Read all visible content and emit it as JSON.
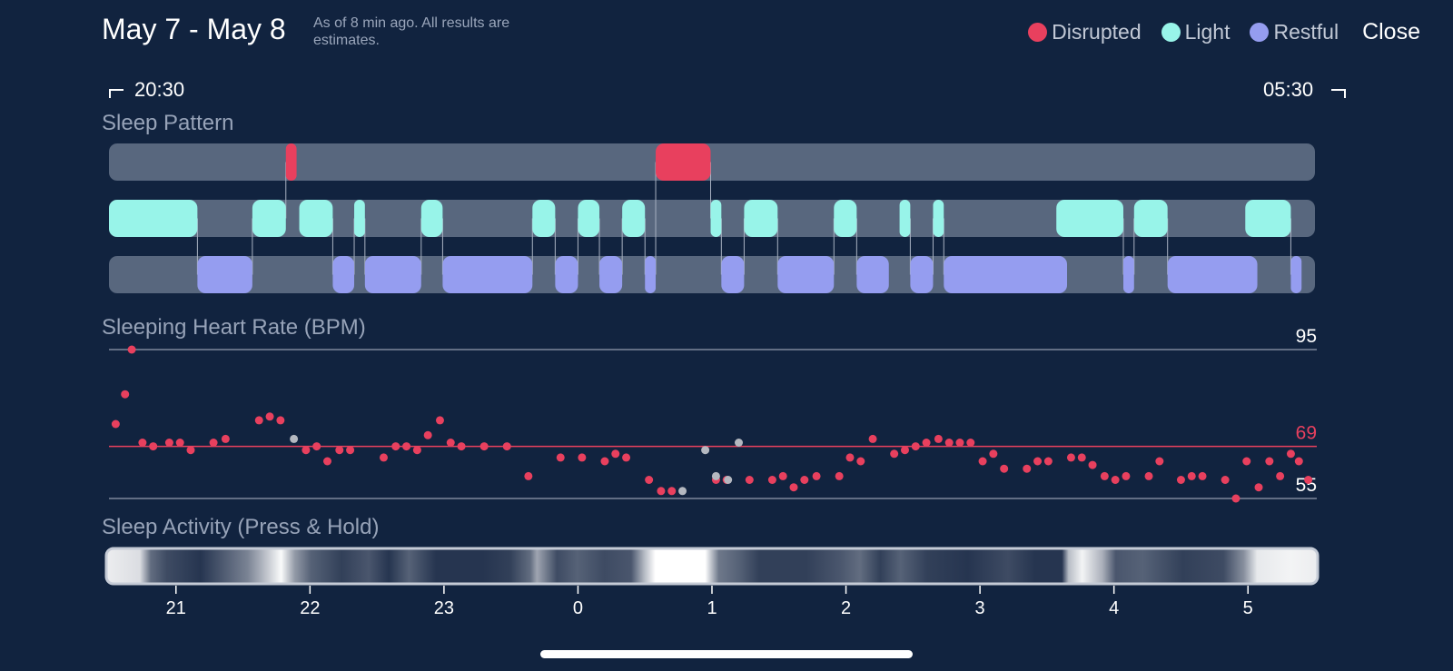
{
  "header": {
    "date_range": "May 7 - May 8",
    "note": "As of 8 min ago. All results are estimates.",
    "close_label": "Close"
  },
  "legend": [
    {
      "label": "Disrupted",
      "color": "#e8405e"
    },
    {
      "label": "Light",
      "color": "#98f4e9"
    },
    {
      "label": "Restful",
      "color": "#959df0"
    }
  ],
  "times": {
    "start": "20:30",
    "end": "05:30"
  },
  "sections": {
    "sleep_pattern": "Sleep Pattern",
    "heart_rate": "Sleeping Heart Rate (BPM)",
    "activity": "Sleep Activity (Press & Hold)"
  },
  "chart_data": [
    {
      "type": "timeline",
      "title": "Sleep Pattern",
      "x_unit": "hours since 20:30",
      "x_range": [
        0,
        9
      ],
      "rows": [
        {
          "name": "Disrupted",
          "color": "#e8405e",
          "segments": [
            [
              1.32,
              1.4
            ],
            [
              4.08,
              4.49
            ]
          ]
        },
        {
          "name": "Light",
          "color": "#98f4e9",
          "segments": [
            [
              0.0,
              0.66
            ],
            [
              1.07,
              1.32
            ],
            [
              1.42,
              1.67
            ],
            [
              1.83,
              1.91
            ],
            [
              2.33,
              2.49
            ],
            [
              3.16,
              3.33
            ],
            [
              3.5,
              3.66
            ],
            [
              3.83,
              4.0
            ],
            [
              4.49,
              4.57
            ],
            [
              4.74,
              4.99
            ],
            [
              5.41,
              5.58
            ],
            [
              5.9,
              5.98
            ],
            [
              6.15,
              6.23
            ],
            [
              7.07,
              7.57
            ],
            [
              7.65,
              7.9
            ],
            [
              8.48,
              8.82
            ]
          ]
        },
        {
          "name": "Restful",
          "color": "#959df0",
          "segments": [
            [
              0.66,
              1.07
            ],
            [
              1.67,
              1.83
            ],
            [
              1.91,
              2.33
            ],
            [
              2.49,
              3.16
            ],
            [
              3.33,
              3.5
            ],
            [
              3.66,
              3.83
            ],
            [
              4.0,
              4.08
            ],
            [
              4.57,
              4.74
            ],
            [
              4.99,
              5.41
            ],
            [
              5.58,
              5.82
            ],
            [
              5.98,
              6.15
            ],
            [
              6.23,
              7.15
            ],
            [
              7.57,
              7.65
            ],
            [
              7.9,
              8.57
            ],
            [
              8.82,
              8.9
            ]
          ]
        }
      ]
    },
    {
      "type": "scatter",
      "title": "Sleeping Heart Rate (BPM)",
      "x_unit": "hours since 20:30",
      "xlim": [
        0,
        9
      ],
      "ylim": [
        55,
        95
      ],
      "reference_lines": [
        {
          "value": 95,
          "label": "95"
        },
        {
          "value": 69,
          "label": "69",
          "color": "#e8405e"
        },
        {
          "value": 55,
          "label": "55"
        }
      ],
      "series": [
        {
          "color": "#e8405e",
          "points": [
            [
              0.05,
              75
            ],
            [
              0.12,
              83
            ],
            [
              0.17,
              95
            ],
            [
              0.25,
              70
            ],
            [
              0.33,
              69
            ],
            [
              0.45,
              70
            ],
            [
              0.53,
              70
            ],
            [
              0.61,
              68
            ],
            [
              0.78,
              70
            ],
            [
              0.87,
              71
            ],
            [
              1.12,
              76
            ],
            [
              1.2,
              77
            ],
            [
              1.28,
              76
            ],
            [
              1.47,
              68
            ],
            [
              1.55,
              69
            ],
            [
              1.63,
              65
            ],
            [
              1.72,
              68
            ],
            [
              1.8,
              68
            ],
            [
              2.05,
              66
            ],
            [
              2.14,
              69
            ],
            [
              2.22,
              69
            ],
            [
              2.3,
              68
            ],
            [
              2.38,
              72
            ],
            [
              2.47,
              76
            ],
            [
              2.55,
              70
            ],
            [
              2.63,
              69
            ],
            [
              2.8,
              69
            ],
            [
              2.97,
              69
            ],
            [
              3.13,
              61
            ],
            [
              3.37,
              66
            ],
            [
              3.53,
              66
            ],
            [
              3.7,
              65
            ],
            [
              3.78,
              67
            ],
            [
              3.86,
              66
            ],
            [
              4.03,
              60
            ],
            [
              4.12,
              57
            ],
            [
              4.2,
              57
            ],
            [
              4.53,
              60
            ],
            [
              4.61,
              60
            ],
            [
              4.78,
              60
            ],
            [
              4.95,
              60
            ],
            [
              5.03,
              61
            ],
            [
              5.11,
              58
            ],
            [
              5.19,
              60
            ],
            [
              5.28,
              61
            ],
            [
              5.45,
              61
            ],
            [
              5.53,
              66
            ],
            [
              5.61,
              65
            ],
            [
              5.7,
              71
            ],
            [
              5.86,
              67
            ],
            [
              5.94,
              68
            ],
            [
              6.02,
              69
            ],
            [
              6.1,
              70
            ],
            [
              6.19,
              71
            ],
            [
              6.27,
              70
            ],
            [
              6.35,
              70
            ],
            [
              6.43,
              70
            ],
            [
              6.52,
              65
            ],
            [
              6.6,
              67
            ],
            [
              6.68,
              63
            ],
            [
              6.85,
              63
            ],
            [
              6.93,
              65
            ],
            [
              7.01,
              65
            ],
            [
              7.18,
              66
            ],
            [
              7.26,
              66
            ],
            [
              7.34,
              64
            ],
            [
              7.43,
              61
            ],
            [
              7.51,
              60
            ],
            [
              7.59,
              61
            ],
            [
              7.76,
              61
            ],
            [
              7.84,
              65
            ],
            [
              8.0,
              60
            ],
            [
              8.08,
              61
            ],
            [
              8.16,
              61
            ],
            [
              8.33,
              60
            ],
            [
              8.41,
              55
            ],
            [
              8.49,
              65
            ],
            [
              8.58,
              58
            ],
            [
              8.66,
              65
            ],
            [
              8.74,
              61
            ],
            [
              8.82,
              67
            ],
            [
              8.88,
              65
            ],
            [
              8.95,
              60
            ]
          ]
        },
        {
          "color": "#b4b8c0",
          "points": [
            [
              1.38,
              71
            ],
            [
              4.28,
              57
            ],
            [
              4.45,
              68
            ],
            [
              4.53,
              61
            ],
            [
              4.62,
              60
            ],
            [
              4.7,
              70
            ]
          ]
        }
      ]
    },
    {
      "type": "heatmap",
      "title": "Sleep Activity (Press & Hold)",
      "x_unit": "hours since 20:30",
      "xlim": [
        0,
        9
      ],
      "x_ticks": [
        "21",
        "22",
        "23",
        "0",
        "1",
        "2",
        "3",
        "4",
        "5"
      ],
      "x_tick_values": [
        0.5,
        1.5,
        2.5,
        3.5,
        4.5,
        5.5,
        6.5,
        7.5,
        8.5
      ],
      "intensity": [
        [
          0.0,
          0.92
        ],
        [
          0.25,
          0.85
        ],
        [
          0.33,
          0.35
        ],
        [
          0.45,
          0.2
        ],
        [
          0.7,
          0.1
        ],
        [
          1.05,
          0.45
        ],
        [
          1.15,
          0.65
        ],
        [
          1.3,
          0.98
        ],
        [
          1.4,
          0.55
        ],
        [
          1.52,
          0.3
        ],
        [
          1.75,
          0.15
        ],
        [
          1.95,
          0.25
        ],
        [
          2.1,
          0.1
        ],
        [
          2.25,
          0.3
        ],
        [
          2.45,
          0.1
        ],
        [
          2.8,
          0.1
        ],
        [
          3.0,
          0.15
        ],
        [
          3.15,
          0.35
        ],
        [
          3.2,
          0.6
        ],
        [
          3.35,
          0.2
        ],
        [
          3.5,
          0.3
        ],
        [
          3.7,
          0.2
        ],
        [
          3.9,
          0.25
        ],
        [
          4.0,
          0.7
        ],
        [
          4.08,
          1.0
        ],
        [
          4.45,
          1.0
        ],
        [
          4.55,
          0.4
        ],
        [
          4.7,
          0.3
        ],
        [
          4.85,
          0.15
        ],
        [
          5.2,
          0.15
        ],
        [
          5.45,
          0.25
        ],
        [
          5.6,
          0.35
        ],
        [
          5.75,
          0.15
        ],
        [
          5.9,
          0.3
        ],
        [
          6.1,
          0.15
        ],
        [
          6.4,
          0.1
        ],
        [
          6.7,
          0.2
        ],
        [
          6.9,
          0.1
        ],
        [
          7.1,
          0.1
        ],
        [
          7.15,
          0.7
        ],
        [
          7.25,
          0.95
        ],
        [
          7.4,
          0.65
        ],
        [
          7.5,
          0.25
        ],
        [
          7.7,
          0.3
        ],
        [
          8.0,
          0.15
        ],
        [
          8.3,
          0.2
        ],
        [
          8.45,
          0.5
        ],
        [
          8.55,
          0.9
        ],
        [
          8.8,
          0.95
        ],
        [
          9.0,
          0.92
        ]
      ]
    }
  ]
}
